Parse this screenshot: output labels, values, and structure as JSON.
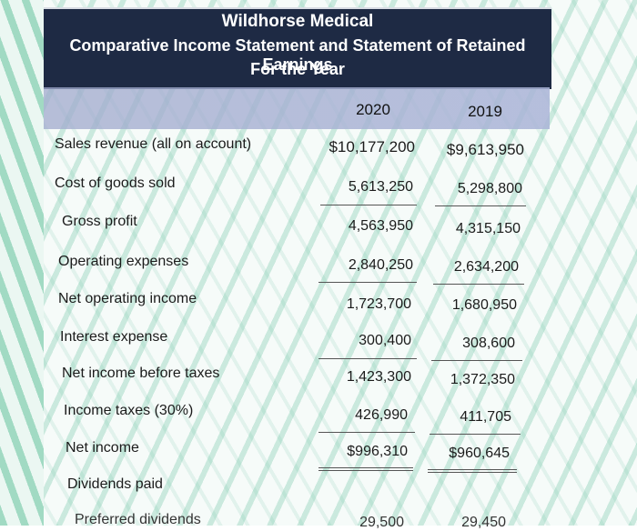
{
  "header": {
    "company": "Wildhorse Medical",
    "statement": "Comparative Income Statement and Statement of Retained Earnings",
    "period": "For the Year"
  },
  "columns": [
    "2020",
    "2019"
  ],
  "rows": [
    {
      "label": "Sales revenue (all on account)",
      "v2020": "$10,177,200",
      "v2019": "$9,613,950"
    },
    {
      "label": "Cost of goods sold",
      "v2020": "5,613,250",
      "v2019": "5,298,800"
    },
    {
      "label": "Gross profit",
      "v2020": "4,563,950",
      "v2019": "4,315,150"
    },
    {
      "label": "Operating expenses",
      "v2020": "2,840,250",
      "v2019": "2,634,200"
    },
    {
      "label": "Net operating income",
      "v2020": "1,723,700",
      "v2019": "1,680,950"
    },
    {
      "label": "Interest expense",
      "v2020": "300,400",
      "v2019": "308,600"
    },
    {
      "label": "Net income before taxes",
      "v2020": "1,423,300",
      "v2019": "1,372,350"
    },
    {
      "label": "Income taxes (30%)",
      "v2020": "426,990",
      "v2019": "411,705"
    },
    {
      "label": "Net income",
      "v2020": "$996,310",
      "v2019": "$960,645"
    },
    {
      "label": "Dividends paid",
      "v2020": "",
      "v2019": ""
    },
    {
      "label": "Preferred dividends",
      "v2020": "29,500",
      "v2019": "29,450"
    }
  ]
}
